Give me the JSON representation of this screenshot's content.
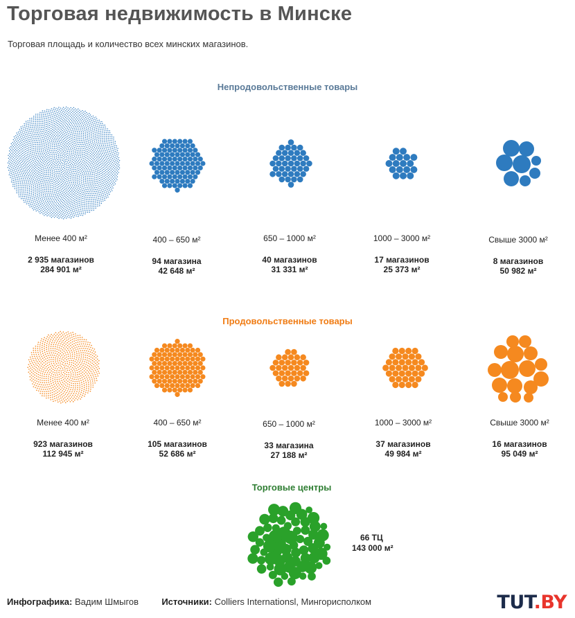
{
  "header": {
    "title": "Торговая недвижимость в Минске",
    "subtitle": "Торговая площадь и количество всех минских магазинов."
  },
  "colors": {
    "nonfood": "#2e7bbf",
    "food": "#f5891f",
    "malls": "#2aa12a",
    "section_nonfood_title": "#5a7a98",
    "section_food_title": "#f07c14",
    "section_malls_title": "#2e7d32"
  },
  "sections": {
    "nonfood": {
      "title": "Непродовольственные товары",
      "groups": [
        {
          "range": "Менее 400 м²",
          "count": "2 935 магазинов",
          "area": "284 901 м²",
          "n": 2935
        },
        {
          "range": "400 – 650 м²",
          "count": "94 магазина",
          "area": "42 648 м²",
          "n": 94
        },
        {
          "range": "650 – 1000 м²",
          "count": "40 магазинов",
          "area": "31 331 м²",
          "n": 40
        },
        {
          "range": "1000 –  3000 м²",
          "count": "17 магазинов",
          "area": "25 373 м²",
          "n": 17
        },
        {
          "range": "Свыше 3000 м²",
          "count": "8 магазинов",
          "area": "50 982 м²",
          "n": 8
        }
      ]
    },
    "food": {
      "title": "Продовольственные товары",
      "groups": [
        {
          "range": "Менее 400 м²",
          "count": "923 магазинов",
          "area": "112 945 м²",
          "n": 923
        },
        {
          "range": "400 – 650 м²",
          "count": "105 магазинов",
          "area": "52 686 м²",
          "n": 105
        },
        {
          "range": "650 – 1000 м²",
          "count": "33 магазина",
          "area": "27 188 м²",
          "n": 33
        },
        {
          "range": "1000 –  3000 м²",
          "count": "37 магазинов",
          "area": "49 984 м²",
          "n": 37
        },
        {
          "range": "Свыше 3000 м²",
          "count": "16 магазинов",
          "area": "95 049 м²",
          "n": 16
        }
      ]
    },
    "malls": {
      "title": "Торговые центры",
      "count": "66 ТЦ",
      "area": "143 000 м²",
      "n": 66
    }
  },
  "footer": {
    "infographic_label": "Инфографика:",
    "infographic_author": "Вадим Шмыгов",
    "sources_label": "Источники:",
    "sources_text": "Colliers Internationsl, Мингорисполком"
  },
  "logo": {
    "main": "TUT",
    "suffix": ".BY"
  }
}
